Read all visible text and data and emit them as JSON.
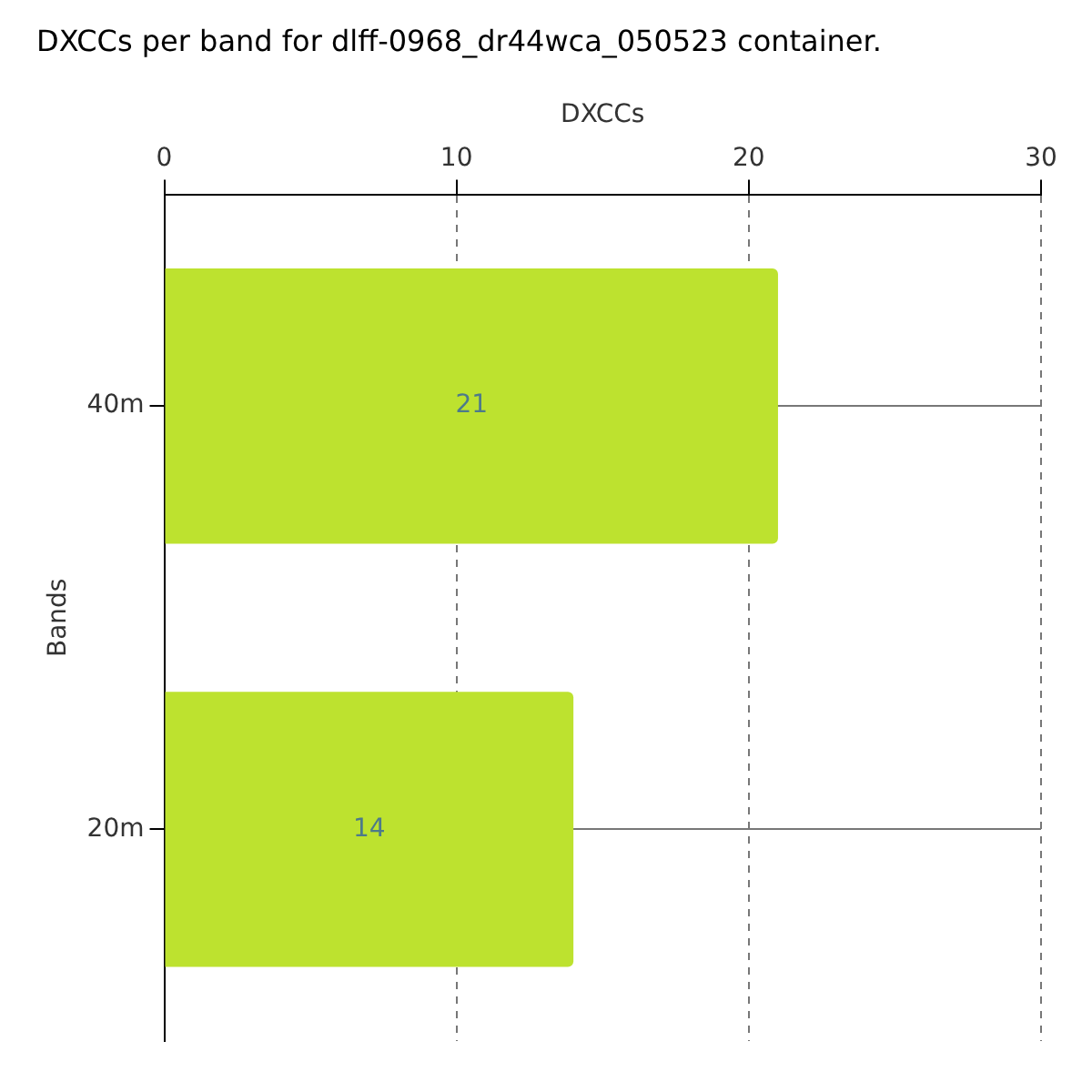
{
  "chart_data": {
    "type": "bar",
    "orientation": "horizontal",
    "title": "DXCCs per band for dlff-0968_dr44wca_050523 container.",
    "xlabel": "DXCCs",
    "ylabel": "Bands",
    "categories": [
      "40m",
      "20m"
    ],
    "values": [
      21,
      14
    ],
    "color": "#bde22f",
    "xlim": [
      0,
      30
    ],
    "xticks": [
      0,
      10,
      20,
      30
    ],
    "grid": true,
    "data_labels": true
  }
}
